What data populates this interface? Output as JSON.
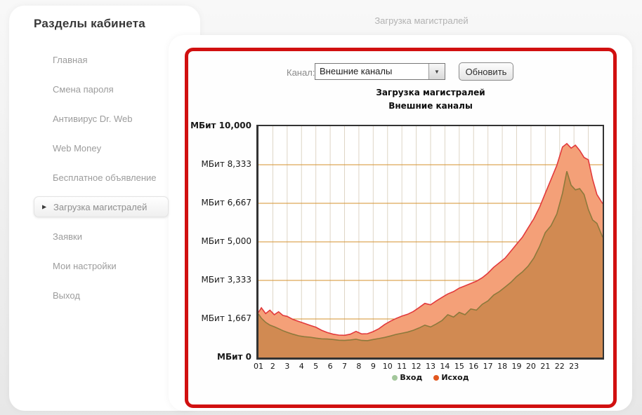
{
  "page": {
    "topbar_title": "Загрузка магистралей"
  },
  "icons": {
    "chevron_down": "▼",
    "active_item_arrow": "▶"
  },
  "sidebar": {
    "title": "Разделы кабинета",
    "items": [
      {
        "label": "Главная",
        "active": false
      },
      {
        "label": "Смена пароля",
        "active": false
      },
      {
        "label": "Антивирус Dr. Web",
        "active": false
      },
      {
        "label": "Web Money",
        "active": false
      },
      {
        "label": "Бесплатное объявление",
        "active": false
      },
      {
        "label": "Загрузка магистралей",
        "active": true
      },
      {
        "label": "Заявки",
        "active": false
      },
      {
        "label": "Мои настройки",
        "active": false
      },
      {
        "label": "Выход",
        "active": false
      }
    ]
  },
  "panel": {
    "channel_label": "Канал:",
    "channel_value": "Внешние каналы",
    "refresh_button": "Обновить",
    "border_color": "#d11010"
  },
  "chart_data": {
    "type": "area",
    "title": "Загрузка магистралей",
    "subtitle": "Внешние каналы",
    "unit": "МБит",
    "ylim": [
      0,
      10000
    ],
    "x_range": [
      1,
      25
    ],
    "grid": {
      "v_color": "#ded5c6",
      "h_color": "#d5922e"
    },
    "yticks": [
      {
        "label": "МБит 10,000",
        "value": 10000,
        "bold": true
      },
      {
        "label": "МБит 8,333",
        "value": 8333,
        "bold": false
      },
      {
        "label": "МБит 6,667",
        "value": 6667,
        "bold": false
      },
      {
        "label": "МБит 5,000",
        "value": 5000,
        "bold": false
      },
      {
        "label": "МБит 3,333",
        "value": 3333,
        "bold": false
      },
      {
        "label": "МБит 1,667",
        "value": 1667,
        "bold": false
      },
      {
        "label": "МБит 0",
        "value": 0,
        "bold": true
      }
    ],
    "x_labels": [
      "01",
      "2",
      "3",
      "4",
      "5",
      "6",
      "7",
      "8",
      "9",
      "10",
      "11",
      "12",
      "13",
      "14",
      "15",
      "16",
      "17",
      "18",
      "19",
      "20",
      "21",
      "22",
      "23"
    ],
    "x": [
      1,
      1.2,
      1.5,
      1.8,
      2.1,
      2.4,
      2.7,
      3,
      3.4,
      3.8,
      4.2,
      4.6,
      5,
      5.4,
      5.8,
      6.2,
      6.6,
      7,
      7.4,
      7.8,
      8.2,
      8.6,
      9,
      9.4,
      9.8,
      10.2,
      10.6,
      11,
      11.4,
      11.8,
      12.2,
      12.6,
      13,
      13.4,
      13.8,
      14.2,
      14.6,
      15,
      15.4,
      15.8,
      16.2,
      16.6,
      17,
      17.4,
      17.8,
      18.2,
      18.6,
      19,
      19.4,
      19.8,
      20.2,
      20.6,
      21,
      21.4,
      21.8,
      22.2,
      22.5,
      22.8,
      23.1,
      23.4,
      23.7,
      24,
      24.3,
      24.6,
      25
    ],
    "series": [
      {
        "name": "Исход",
        "stroke": "#e23a3c",
        "fill": "#f4a078",
        "values": [
          1950,
          2150,
          1900,
          2050,
          1850,
          1980,
          1820,
          1780,
          1650,
          1560,
          1480,
          1390,
          1310,
          1180,
          1080,
          1010,
          970,
          960,
          1010,
          1130,
          1020,
          1030,
          1120,
          1250,
          1430,
          1570,
          1690,
          1790,
          1870,
          1990,
          2160,
          2340,
          2280,
          2450,
          2600,
          2750,
          2850,
          3000,
          3100,
          3200,
          3300,
          3450,
          3650,
          3900,
          4100,
          4300,
          4600,
          4900,
          5200,
          5600,
          6000,
          6500,
          7100,
          7700,
          8300,
          9100,
          9250,
          9050,
          9180,
          8950,
          8650,
          8550,
          7700,
          7050,
          6650
        ]
      },
      {
        "name": "Вход",
        "stroke": "#8d793c",
        "fill": "#d18a52",
        "values": [
          1880,
          1700,
          1520,
          1400,
          1330,
          1250,
          1160,
          1090,
          1010,
          940,
          900,
          880,
          840,
          810,
          800,
          780,
          750,
          740,
          760,
          790,
          740,
          730,
          780,
          820,
          870,
          930,
          1000,
          1050,
          1100,
          1180,
          1280,
          1400,
          1320,
          1450,
          1600,
          1850,
          1750,
          1950,
          1850,
          2100,
          2050,
          2300,
          2450,
          2700,
          2850,
          3050,
          3250,
          3500,
          3700,
          3950,
          4300,
          4800,
          5400,
          5700,
          6200,
          7100,
          8050,
          7450,
          7250,
          7300,
          7050,
          6400,
          5950,
          5800,
          5200
        ]
      }
    ],
    "legend": [
      {
        "label": "Вход",
        "color": "#a3c79b"
      },
      {
        "label": "Исход",
        "color": "#e2571e"
      }
    ]
  }
}
